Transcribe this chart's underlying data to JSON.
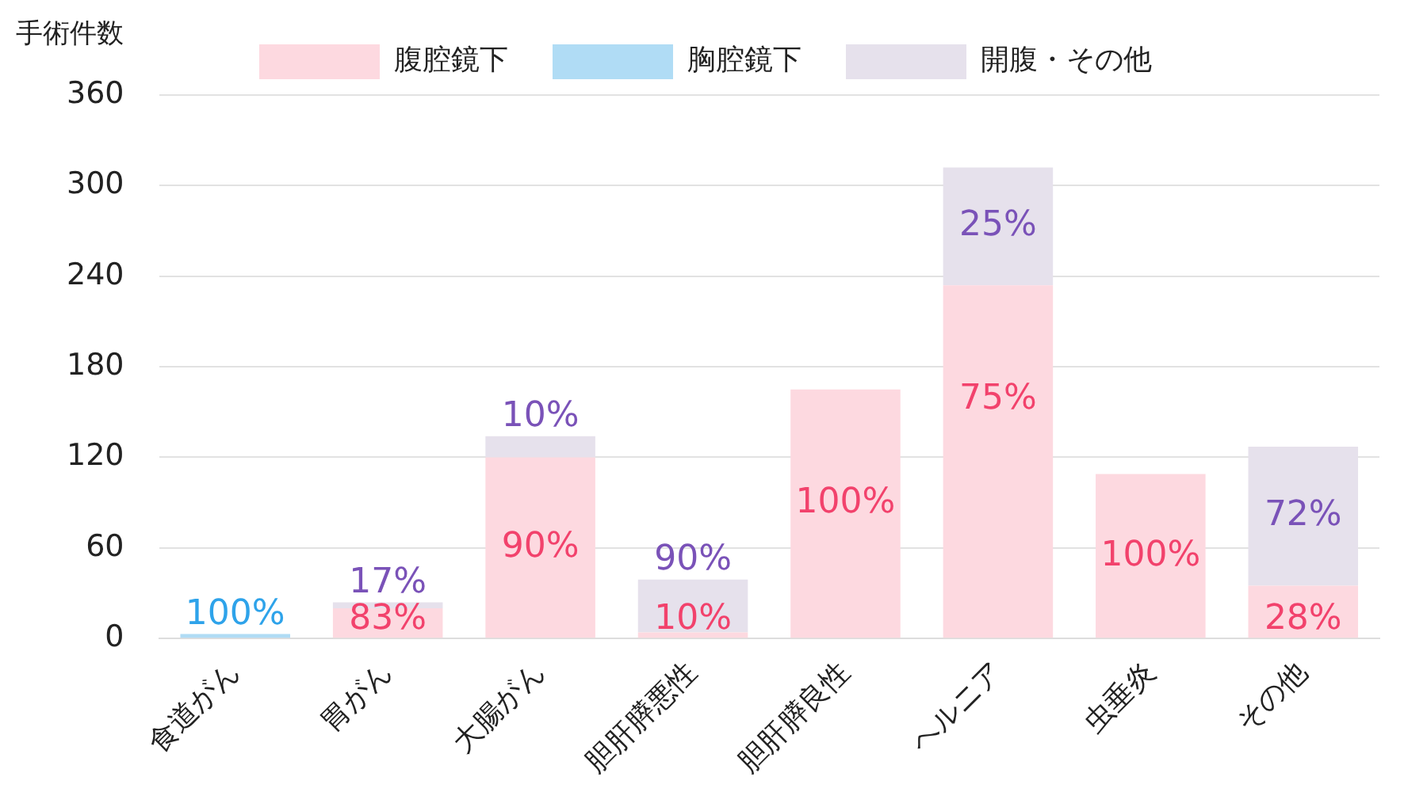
{
  "chart_data": {
    "type": "bar",
    "stacked": true,
    "ylabel": "手術件数",
    "categories": [
      "食道がん",
      "胃がん",
      "大腸がん",
      "胆肝膵悪性",
      "胆肝膵良性",
      "ヘルニア",
      "虫垂炎",
      "その他"
    ],
    "series": [
      {
        "name": "腹腔鏡下",
        "color": "#fdd9e0",
        "values": [
          null,
          20,
          120,
          4,
          165,
          234,
          109,
          35
        ]
      },
      {
        "name": "胸腔鏡下",
        "color": "#b0dcf5",
        "values": [
          3,
          null,
          null,
          null,
          null,
          null,
          null,
          null
        ]
      },
      {
        "name": "開腹・その他",
        "color": "#e6e1ec",
        "values": [
          null,
          4,
          14,
          35,
          null,
          78,
          null,
          92
        ]
      }
    ],
    "annotations": [
      {
        "text": "100%",
        "x": "食道がん",
        "y": 3
      },
      {
        "text": "83%",
        "x": "胃がん",
        "y": 20
      },
      {
        "text": "17%",
        "x": "胃がん",
        "y": 24
      },
      {
        "text": "90%",
        "x": "大腸がん",
        "y": 120
      },
      {
        "text": "10%",
        "x": "大腸がん",
        "y": 134
      },
      {
        "text": "10%",
        "x": "胆肝膵悪性",
        "y": 4
      },
      {
        "text": "90%",
        "x": "胆肝膵悪性",
        "y": 39
      },
      {
        "text": "100%",
        "x": "胆肝膵良性",
        "y": 165
      },
      {
        "text": "75%",
        "x": "ヘルニア",
        "y": 234
      },
      {
        "text": "25%",
        "x": "ヘルニア",
        "y": 312
      },
      {
        "text": "100%",
        "x": "虫垂炎",
        "y": 109
      },
      {
        "text": "28%",
        "x": "その他",
        "y": 35
      },
      {
        "text": "72%",
        "x": "その他",
        "y": 127
      }
    ],
    "ylim": [
      0,
      360
    ],
    "yticks": [
      0,
      60,
      120,
      180,
      240,
      300,
      360
    ],
    "grid": "y",
    "legend": "top"
  }
}
